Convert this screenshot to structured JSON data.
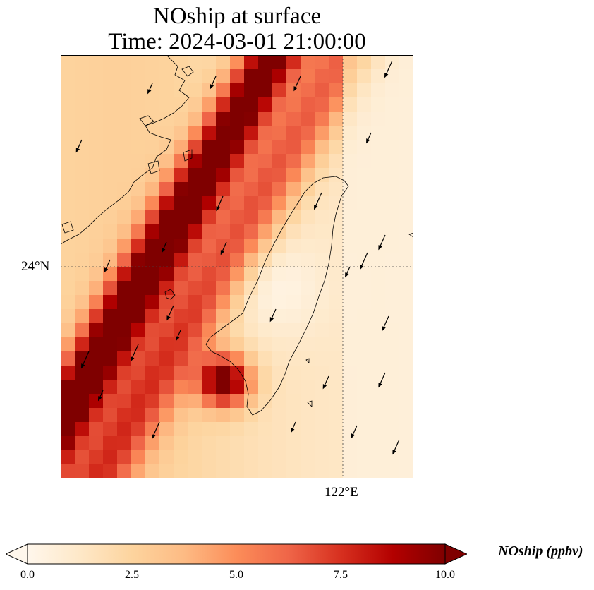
{
  "title": {
    "line1": "NOship at surface",
    "line2": "Time: 2024-03-01 21:00:00"
  },
  "axes": {
    "lat_label": "24°N",
    "lon_label": "122°E"
  },
  "colorbar": {
    "label": "NOship (ppbv)",
    "ticks": [
      "0.0",
      "2.5",
      "5.0",
      "7.5",
      "10.0"
    ],
    "range": [
      0,
      10
    ],
    "colormap": [
      "#fff7ec",
      "#fee8c8",
      "#fdd49e",
      "#fdbb84",
      "#fc8d59",
      "#ef6548",
      "#d7301f",
      "#b30000",
      "#7f0000"
    ],
    "extend": "both"
  },
  "map": {
    "gridlines": "dotted",
    "features": [
      "coastline",
      "wind-vectors"
    ]
  }
}
